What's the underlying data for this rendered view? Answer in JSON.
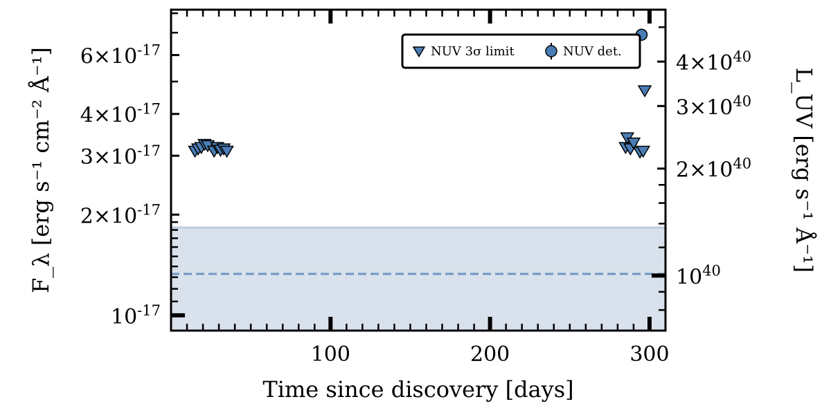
{
  "chart_data": {
    "type": "scatter",
    "xlabel": "Time since discovery [days]",
    "ylabel_left": "F_λ [erg s⁻¹ cm⁻² Å⁻¹]",
    "ylabel_right": "L_UV [erg s⁻¹ Å⁻¹]",
    "xlim": [
      0,
      310
    ],
    "ylim_left": [
      9e-18,
      8.2e-17
    ],
    "ylim_right": [
      7e+39,
      5.6e+40
    ],
    "y_scale": "log",
    "x_ticks": [
      100,
      200,
      300
    ],
    "x_tick_labels": [
      "100",
      "200",
      "300"
    ],
    "y_left_ticks": [
      1e-17,
      2e-17,
      3e-17,
      4e-17,
      6e-17
    ],
    "y_left_tick_labels": [
      {
        "mant": "",
        "base": "10",
        "exp": "-17"
      },
      {
        "mant": "2×",
        "base": "10",
        "exp": "-17"
      },
      {
        "mant": "3×",
        "base": "10",
        "exp": "-17"
      },
      {
        "mant": "4×",
        "base": "10",
        "exp": "-17"
      },
      {
        "mant": "6×",
        "base": "10",
        "exp": "-17"
      }
    ],
    "y_right_ticks": [
      1e+40,
      2e+40,
      3e+40,
      4e+40
    ],
    "y_right_tick_labels": [
      {
        "mant": "",
        "base": "10",
        "exp": "40"
      },
      {
        "mant": "2×",
        "base": "10",
        "exp": "40"
      },
      {
        "mant": "3×",
        "base": "10",
        "exp": "40"
      },
      {
        "mant": "4×",
        "base": "10",
        "exp": "40"
      }
    ],
    "series": [
      {
        "name": "NUV 3σ limit",
        "marker": "triangle-down",
        "color": "#4a7db5",
        "points": [
          {
            "x": 15,
            "y": 3.1e-17
          },
          {
            "x": 17,
            "y": 3.15e-17
          },
          {
            "x": 19,
            "y": 3.18e-17
          },
          {
            "x": 21,
            "y": 3.25e-17
          },
          {
            "x": 23,
            "y": 3.22e-17
          },
          {
            "x": 27,
            "y": 3.1e-17
          },
          {
            "x": 29,
            "y": 3.18e-17
          },
          {
            "x": 31,
            "y": 3.12e-17
          },
          {
            "x": 33,
            "y": 3.15e-17
          },
          {
            "x": 35,
            "y": 3.1e-17
          },
          {
            "x": 285,
            "y": 3.18e-17
          },
          {
            "x": 286,
            "y": 3.4e-17
          },
          {
            "x": 288,
            "y": 3.15e-17
          },
          {
            "x": 290,
            "y": 3.28e-17
          },
          {
            "x": 294,
            "y": 3.08e-17
          },
          {
            "x": 296,
            "y": 3.1e-17
          },
          {
            "x": 297,
            "y": 4.7e-17
          }
        ]
      },
      {
        "name": "NUV det.",
        "marker": "circle",
        "color": "#4a7db5",
        "points": [
          {
            "x": 295,
            "y": 6.9e-17,
            "yerr": 2e-18
          }
        ]
      }
    ],
    "hline": {
      "y": 1.33e-17,
      "style": "dashed",
      "color": "#6f96c4"
    },
    "band": {
      "y0": 9e-18,
      "y1": 1.83e-17,
      "fill": "#d9e2ec",
      "edge": "#bccce0"
    },
    "legend": {
      "placement": "top-right",
      "entries": [
        "NUV 3σ limit",
        "NUV det."
      ]
    }
  }
}
